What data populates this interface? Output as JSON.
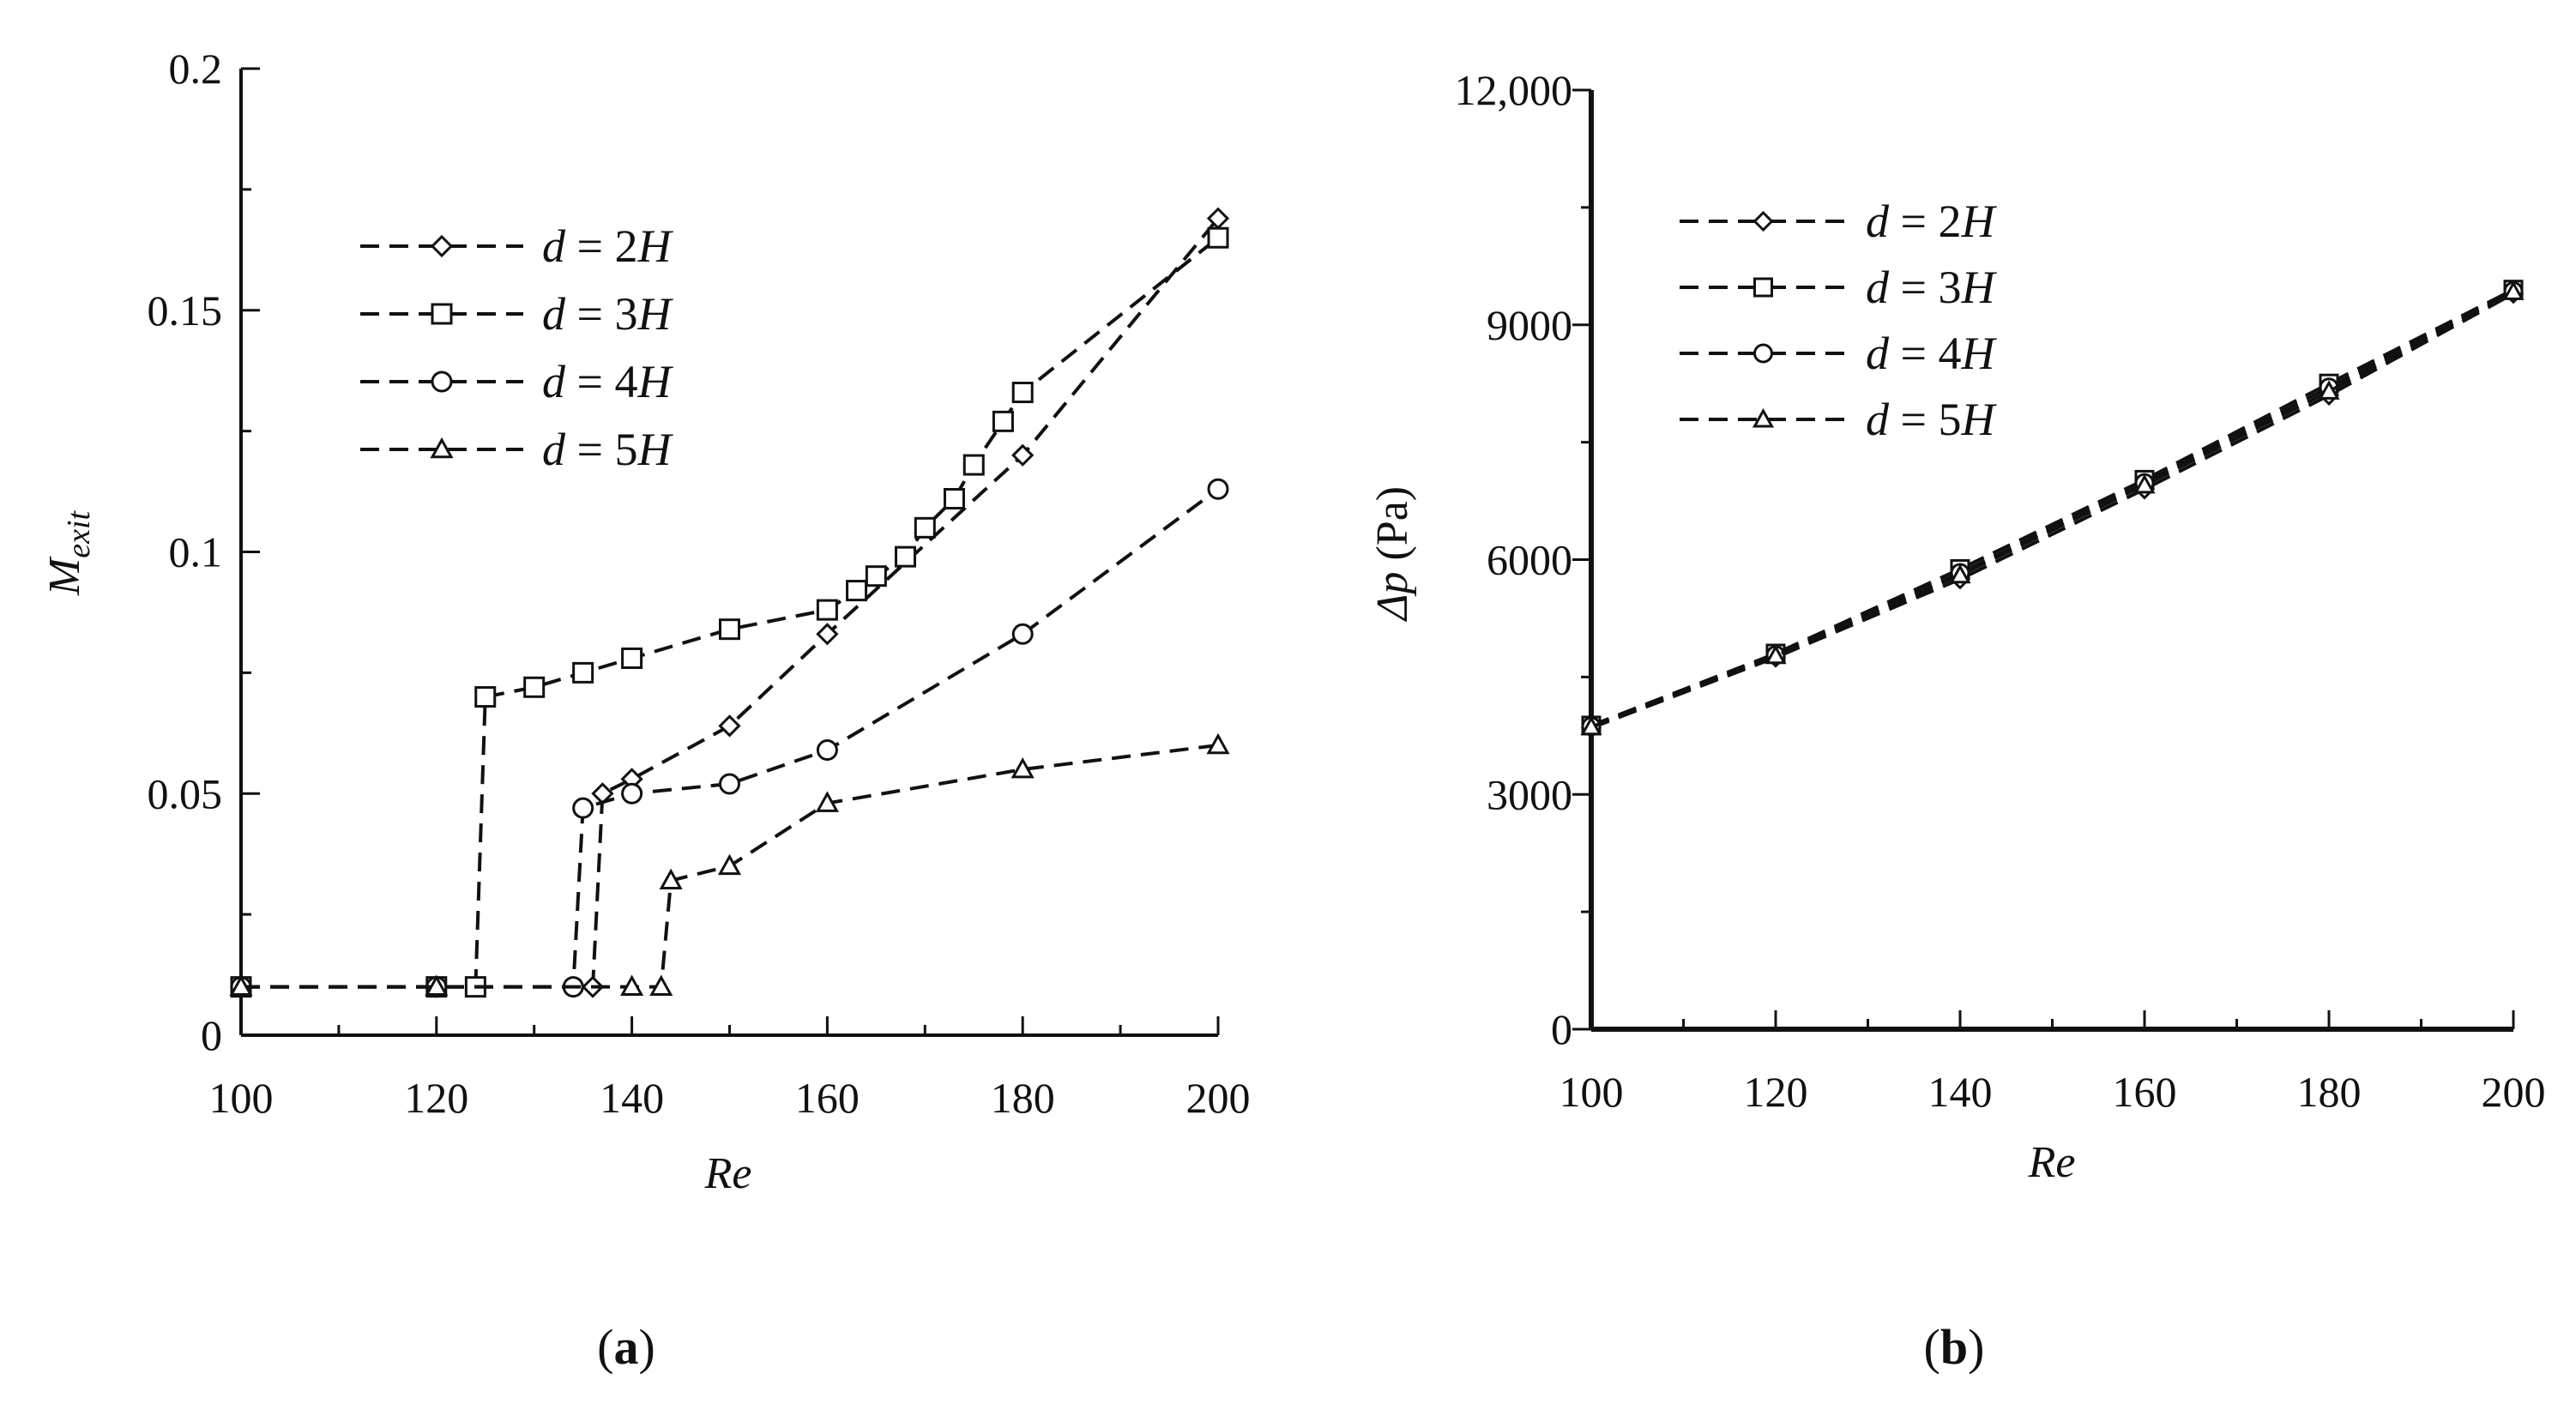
{
  "chart_data": [
    {
      "type": "line",
      "panel_label": "a",
      "xlabel": "Re",
      "ylabel": "M",
      "ylabel_sub": "exit",
      "xlim": [
        100,
        200
      ],
      "ylim": [
        0,
        0.2
      ],
      "xticks": [
        "100",
        "120",
        "140",
        "160",
        "180",
        "200"
      ],
      "yticks": [
        "0",
        "0.05",
        "0.1",
        "0.15",
        "0.2"
      ],
      "legend_position": "upper-left",
      "series": [
        {
          "name": "d = 2H",
          "d_label": "d",
          "eq": " = 2",
          "h_label": "H",
          "marker": "diamond",
          "x": [
            100,
            120,
            136,
            137,
            140,
            150,
            160,
            180,
            200
          ],
          "y": [
            0.01,
            0.01,
            0.01,
            0.05,
            0.053,
            0.064,
            0.083,
            0.12,
            0.169
          ]
        },
        {
          "name": "d = 3H",
          "d_label": "d",
          "eq": " = 3",
          "h_label": "H",
          "marker": "square",
          "x": [
            100,
            120,
            124,
            125,
            130,
            135,
            140,
            150,
            160,
            163,
            165,
            168,
            170,
            173,
            175,
            178,
            180,
            200
          ],
          "y": [
            0.01,
            0.01,
            0.01,
            0.07,
            0.072,
            0.075,
            0.078,
            0.084,
            0.088,
            0.092,
            0.095,
            0.099,
            0.105,
            0.111,
            0.118,
            0.127,
            0.133,
            0.165
          ]
        },
        {
          "name": "d = 4H",
          "d_label": "d",
          "eq": " = 4",
          "h_label": "H",
          "marker": "circle",
          "x": [
            100,
            120,
            134,
            135,
            140,
            150,
            160,
            180,
            200
          ],
          "y": [
            0.01,
            0.01,
            0.01,
            0.047,
            0.05,
            0.052,
            0.059,
            0.083,
            0.113
          ]
        },
        {
          "name": "d = 5H",
          "d_label": "d",
          "eq": " = 5",
          "h_label": "H",
          "marker": "triangle",
          "x": [
            100,
            120,
            140,
            143,
            144,
            150,
            160,
            180,
            200
          ],
          "y": [
            0.01,
            0.01,
            0.01,
            0.01,
            0.032,
            0.035,
            0.048,
            0.055,
            0.06
          ]
        }
      ]
    },
    {
      "type": "line",
      "panel_label": "b",
      "xlabel": "Re",
      "ylabel_symbol": "Δp",
      "ylabel_unit": " (Pa)",
      "xlim": [
        100,
        200
      ],
      "ylim": [
        0,
        12000
      ],
      "xticks": [
        "100",
        "120",
        "140",
        "160",
        "180",
        "200"
      ],
      "yticks": [
        "0",
        "3000",
        "6000",
        "9000",
        "12,000"
      ],
      "legend_position": "upper-left",
      "series": [
        {
          "name": "d = 2H",
          "d_label": "d",
          "eq": " = 2",
          "h_label": "H",
          "marker": "diamond",
          "x": [
            100,
            120,
            140,
            160,
            180,
            200
          ],
          "y": [
            3850,
            4750,
            5750,
            6900,
            8100,
            9400
          ]
        },
        {
          "name": "d = 3H",
          "d_label": "d",
          "eq": " = 3",
          "h_label": "H",
          "marker": "square",
          "x": [
            100,
            120,
            140,
            160,
            180,
            200
          ],
          "y": [
            3880,
            4800,
            5880,
            7020,
            8250,
            9450
          ]
        },
        {
          "name": "d = 4H",
          "d_label": "d",
          "eq": " = 4",
          "h_label": "H",
          "marker": "circle",
          "x": [
            100,
            120,
            140,
            160,
            180,
            200
          ],
          "y": [
            3870,
            4780,
            5830,
            6980,
            8200,
            9430
          ]
        },
        {
          "name": "d = 5H",
          "d_label": "d",
          "eq": " = 5",
          "h_label": "H",
          "marker": "triangle",
          "x": [
            100,
            120,
            140,
            160,
            180,
            200
          ],
          "y": [
            3860,
            4770,
            5800,
            6950,
            8150,
            9420
          ]
        }
      ]
    }
  ]
}
